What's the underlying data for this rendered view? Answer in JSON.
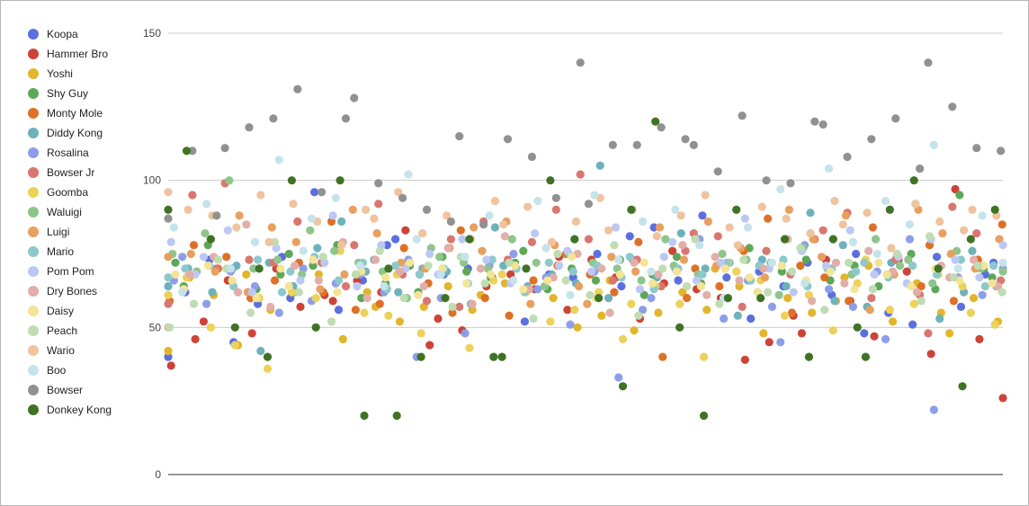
{
  "chart_data": {
    "type": "scatter",
    "title": "",
    "xlabel": "",
    "ylabel": "",
    "ylim": [
      0,
      150
    ],
    "yticks": [
      0,
      50,
      100,
      150
    ],
    "grid": true,
    "legend_position": "left",
    "series": [
      {
        "name": "Koopa",
        "color": "#5b6fe0",
        "values": [
          40,
          62,
          73,
          45,
          58,
          74,
          60,
          96,
          56,
          66,
          78,
          80,
          68,
          68,
          70,
          67,
          70,
          52,
          68,
          67,
          75,
          64,
          81,
          84,
          66,
          88,
          67,
          53,
          69,
          64,
          72,
          61,
          75,
          48,
          55,
          51,
          74,
          57,
          68,
          72
        ]
      },
      {
        "name": "Hammer Bro",
        "color": "#cc4437",
        "values": [
          37,
          46,
          52,
          66,
          48,
          70,
          57,
          61,
          59,
          66,
          62,
          83,
          44,
          53,
          49,
          64,
          68,
          63,
          74,
          56,
          73,
          67,
          53,
          65,
          76,
          63,
          60,
          39,
          45,
          54,
          48,
          73,
          59,
          47,
          73,
          69,
          41,
          97,
          46,
          26
        ]
      },
      {
        "name": "Yoshi",
        "color": "#e3b52b",
        "values": [
          42,
          67,
          61,
          44,
          68,
          56,
          62,
          68,
          46,
          62,
          57,
          52,
          57,
          64,
          56,
          61,
          65,
          63,
          60,
          50,
          54,
          66,
          49,
          55,
          62,
          56,
          70,
          64,
          48,
          60,
          55,
          59,
          67,
          71,
          52,
          65,
          55,
          48,
          60,
          52
        ]
      },
      {
        "name": "Shy Guy",
        "color": "#5ca858",
        "values": [
          72,
          64,
          78,
          70,
          63,
          68,
          75,
          71,
          78,
          60,
          65,
          71,
          62,
          74,
          69,
          67,
          72,
          76,
          63,
          70,
          66,
          73,
          61,
          68,
          74,
          65,
          70,
          77,
          62,
          69,
          73,
          66,
          71,
          64,
          68,
          75,
          63,
          95,
          70,
          67
        ]
      },
      {
        "name": "Monty Mole",
        "color": "#dd7128",
        "values": [
          59,
          78,
          70,
          74,
          60,
          66,
          72,
          62,
          86,
          56,
          58,
          77,
          65,
          55,
          83,
          60,
          54,
          66,
          71,
          75,
          68,
          62,
          79,
          40,
          60,
          70,
          64,
          76,
          87,
          55,
          71,
          67,
          59,
          84,
          74,
          64,
          78,
          59,
          73,
          85
        ]
      },
      {
        "name": "Diddy Kong",
        "color": "#6fb1bb",
        "values": [
          64,
          70,
          62,
          71,
          42,
          72,
          64,
          77,
          86,
          69,
          73,
          62,
          70,
          69,
          58,
          84,
          71,
          64,
          68,
          65,
          105,
          60,
          73,
          67,
          82,
          70,
          72,
          54,
          73,
          64,
          89,
          59,
          78,
          57,
          72,
          92,
          53,
          62,
          76,
          64
        ]
      },
      {
        "name": "Rosalina",
        "color": "#8d9ee8",
        "values": [
          66,
          74,
          58,
          69,
          64,
          55,
          70,
          59,
          65,
          68,
          62,
          73,
          40,
          60,
          48,
          71,
          75,
          63,
          67,
          51,
          69,
          33,
          56,
          60,
          70,
          80,
          53,
          66,
          57,
          45,
          78,
          63,
          57,
          69,
          46,
          80,
          22,
          67,
          61,
          70
        ]
      },
      {
        "name": "Bowser Jr",
        "color": "#d97670",
        "values": [
          58,
          95,
          70,
          99,
          73,
          72,
          86,
          72,
          64,
          78,
          92,
          68,
          59,
          80,
          57,
          86,
          73,
          79,
          90,
          102,
          80,
          66,
          73,
          64,
          76,
          82,
          81,
          57,
          76,
          68,
          80,
          83,
          89,
          60,
          73,
          61,
          48,
          91,
          82,
          66
        ]
      },
      {
        "name": "Goomba",
        "color": "#ecd15a",
        "values": [
          61,
          67,
          50,
          44,
          60,
          36,
          62,
          60,
          76,
          55,
          54,
          68,
          48,
          60,
          43,
          66,
          68,
          62,
          52,
          56,
          62,
          46,
          58,
          64,
          58,
          40,
          72,
          69,
          66,
          54,
          61,
          49,
          65,
          73,
          56,
          58,
          68,
          64,
          55,
          51
        ]
      },
      {
        "name": "Waluigi",
        "color": "#8ec58b",
        "values": [
          75,
          69,
          82,
          100,
          70,
          73,
          68,
          83,
          76,
          72,
          69,
          60,
          77,
          74,
          72,
          70,
          80,
          72,
          64,
          75,
          72,
          70,
          66,
          80,
          71,
          68,
          75,
          73,
          72,
          61,
          77,
          70,
          68,
          80,
          71,
          73,
          65,
          76,
          70,
          69
        ]
      },
      {
        "name": "Luigi",
        "color": "#e89f5f",
        "values": [
          74,
          75,
          69,
          88,
          62,
          84,
          79,
          63,
          68,
          90,
          82,
          72,
          70,
          77,
          84,
          76,
          86,
          58,
          78,
          64,
          58,
          74,
          69,
          84,
          73,
          86,
          71,
          77,
          67,
          90,
          80,
          74,
          88,
          56,
          68,
          90,
          82,
          75,
          70,
          80
        ]
      },
      {
        "name": "Mario",
        "color": "#8cc8cc",
        "values": [
          67,
          70,
          71,
          64,
          73,
          62,
          69,
          74,
          66,
          72,
          63,
          71,
          68,
          70,
          65,
          73,
          70,
          62,
          72,
          69,
          71,
          67,
          74,
          63,
          70,
          68,
          72,
          66,
          71,
          73,
          64,
          70,
          69,
          72,
          67,
          71,
          68,
          73,
          64,
          71
        ]
      },
      {
        "name": "Pom Pom",
        "color": "#bcc8f4",
        "values": [
          79,
          68,
          74,
          83,
          62,
          77,
          66,
          72,
          88,
          64,
          78,
          70,
          75,
          68,
          80,
          73,
          65,
          82,
          71,
          76,
          69,
          84,
          63,
          74,
          79,
          66,
          72,
          87,
          70,
          62,
          76,
          71,
          83,
          68,
          74,
          65,
          80,
          73,
          67,
          78
        ]
      },
      {
        "name": "Dry Bones",
        "color": "#e1aea9",
        "values": [
          50,
          68,
          74,
          62,
          85,
          57,
          71,
          66,
          79,
          60,
          73,
          69,
          64,
          77,
          58,
          70,
          81,
          63,
          67,
          75,
          70,
          55,
          72,
          68,
          78,
          61,
          74,
          66,
          70,
          80,
          59,
          72,
          65,
          76,
          69,
          62,
          71,
          67,
          73,
          64
        ]
      },
      {
        "name": "Daisy",
        "color": "#f3e496",
        "values": [
          68,
          63,
          71,
          66,
          60,
          70,
          64,
          73,
          62,
          69,
          67,
          72,
          61,
          70,
          65,
          68,
          71,
          63,
          66,
          74,
          60,
          68,
          72,
          65,
          69,
          64,
          70,
          67,
          62,
          71,
          66,
          69,
          63,
          72,
          68,
          64,
          70,
          66,
          71,
          65
        ]
      },
      {
        "name": "Peach",
        "color": "#bfdcb3",
        "values": [
          50,
          58,
          73,
          70,
          55,
          79,
          62,
          74,
          52,
          68,
          76,
          60,
          71,
          57,
          74,
          65,
          72,
          53,
          75,
          66,
          61,
          78,
          54,
          70,
          64,
          80,
          58,
          73,
          62,
          69,
          77,
          56,
          72,
          63,
          75,
          59,
          81,
          67,
          71,
          62
        ]
      },
      {
        "name": "Wario",
        "color": "#efc39e",
        "values": [
          96,
          90,
          88,
          84,
          95,
          79,
          92,
          86,
          78,
          90,
          87,
          96,
          82,
          88,
          80,
          93,
          85,
          91,
          79,
          86,
          94,
          83,
          90,
          81,
          88,
          95,
          84,
          78,
          91,
          87,
          82,
          93,
          85,
          89,
          77,
          92,
          86,
          83,
          90,
          88
        ]
      },
      {
        "name": "Boo",
        "color": "#c5e3ea",
        "values": [
          84,
          62,
          92,
          70,
          79,
          107,
          76,
          87,
          94,
          71,
          64,
          102,
          80,
          68,
          74,
          88,
          66,
          93,
          77,
          61,
          95,
          73,
          86,
          69,
          90,
          78,
          60,
          84,
          72,
          97,
          65,
          104,
          79,
          75,
          93,
          85,
          112,
          70,
          88,
          72
        ]
      },
      {
        "name": "Bowser",
        "color": "#919191",
        "values": [
          87,
          110,
          88,
          111,
          118,
          121,
          131,
          96,
          121,
          128,
          99,
          94,
          90,
          86,
          115,
          85,
          114,
          108,
          94,
          140,
          92,
          112,
          112,
          118,
          114,
          112,
          103,
          122,
          100,
          99,
          120,
          119,
          108,
          114,
          121,
          104,
          140,
          125,
          111,
          110
        ]
      },
      {
        "name": "Donkey Kong",
        "color": "#3f7225",
        "values": [
          90,
          110,
          80,
          50,
          70,
          40,
          100,
          50,
          100,
          20,
          70,
          20,
          40,
          60,
          80,
          40,
          40,
          70,
          100,
          80,
          60,
          30,
          90,
          120,
          50,
          20,
          60,
          90,
          60,
          80,
          40,
          80,
          50,
          40,
          90,
          100,
          70,
          30,
          80,
          90
        ]
      }
    ]
  }
}
